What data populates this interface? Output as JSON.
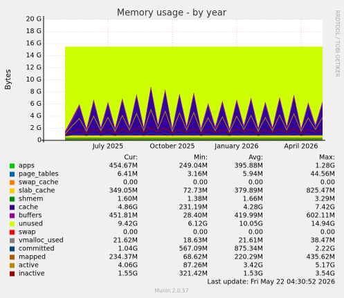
{
  "chart_data": {
    "type": "area",
    "title": "Memory usage - by year",
    "y_label": "Bytes",
    "side_note": "RRDTOOL / TOBI OETIKER",
    "categories": [
      null,
      null,
      null,
      null,
      null,
      null,
      null,
      null,
      null,
      "July 2025",
      null,
      null,
      null,
      null,
      null,
      null,
      null,
      null,
      "October 2025",
      null,
      null,
      null,
      null,
      null,
      null,
      null,
      null,
      "January 2026",
      null,
      null,
      null,
      null,
      null,
      null,
      null,
      null,
      "April 2026",
      null,
      null,
      null
    ],
    "ylim": [
      0,
      20
    ],
    "yticks": [
      0,
      {
        "value": 2,
        "label": "2 G"
      },
      {
        "value": 4,
        "label": "4 G"
      },
      {
        "value": 6,
        "label": "6 G"
      },
      {
        "value": 8,
        "label": "8 G"
      },
      {
        "value": 10,
        "label": "10 G"
      },
      {
        "value": 12,
        "label": "12 G"
      },
      {
        "value": 14,
        "label": "14 G"
      },
      {
        "value": 16,
        "label": "16 G"
      },
      {
        "value": 18,
        "label": "18 G"
      },
      {
        "value": 20,
        "label": "20 G"
      }
    ],
    "grid": true,
    "stat_headers": [
      "Cur:",
      "Min:",
      "Avg:",
      "Max:"
    ],
    "series": [
      {
        "name": "apps",
        "color": "#00cc00",
        "style": "area",
        "stats": [
          "454.67M",
          "249.04M",
          "395.88M",
          "1.28G"
        ],
        "values": [
          null,
          null,
          null,
          0.45,
          0.45,
          0.45,
          0.45,
          0.45,
          0.45,
          0.45,
          0.45,
          0.45,
          0.45,
          0.45,
          0.45,
          0.45,
          0.45,
          0.45,
          0.45,
          0.45,
          0.45,
          0.45,
          0.45,
          0.45,
          0.45,
          0.45,
          0.45,
          0.45,
          0.45,
          0.45,
          0.45,
          0.45,
          0.45,
          0.45,
          0.45,
          0.45,
          0.45,
          0.45,
          0.45,
          0.45
        ]
      },
      {
        "name": "page_tables",
        "color": "#0066b3",
        "style": "area",
        "stats": [
          "6.41M",
          "3.16M",
          "5.94M",
          "44.56M"
        ],
        "values": [
          null,
          null,
          null,
          0.006,
          0.006,
          0.006,
          0.006,
          0.006,
          0.006,
          0.006,
          0.006,
          0.006,
          0.006,
          0.006,
          0.006,
          0.006,
          0.006,
          0.006,
          0.006,
          0.006,
          0.006,
          0.006,
          0.006,
          0.006,
          0.006,
          0.006,
          0.006,
          0.006,
          0.006,
          0.006,
          0.006,
          0.006,
          0.006,
          0.006,
          0.006,
          0.006,
          0.006,
          0.006,
          0.006,
          0.006
        ]
      },
      {
        "name": "swap_cache",
        "color": "#ff8000",
        "style": "area",
        "stats": [
          "0.00",
          "0.00",
          "0.00",
          "0.00"
        ],
        "values": [
          null,
          null,
          null,
          0,
          0,
          0,
          0,
          0,
          0,
          0,
          0,
          0,
          0,
          0,
          0,
          0,
          0,
          0,
          0,
          0,
          0,
          0,
          0,
          0,
          0,
          0,
          0,
          0,
          0,
          0,
          0,
          0,
          0,
          0,
          0,
          0,
          0,
          0,
          0,
          0
        ]
      },
      {
        "name": "slab_cache",
        "color": "#ffcc00",
        "style": "area",
        "stats": [
          "349.05M",
          "72.73M",
          "379.89M",
          "825.47M"
        ],
        "values": [
          null,
          null,
          null,
          0.35,
          0.35,
          0.35,
          0.35,
          0.35,
          0.35,
          0.35,
          0.35,
          0.35,
          0.35,
          0.35,
          0.35,
          0.35,
          0.35,
          0.35,
          0.35,
          0.35,
          0.35,
          0.35,
          0.35,
          0.35,
          0.35,
          0.35,
          0.35,
          0.35,
          0.35,
          0.35,
          0.35,
          0.35,
          0.35,
          0.35,
          0.35,
          0.35,
          0.35,
          0.35,
          0.35,
          0.35
        ]
      },
      {
        "name": "shmem",
        "color": "#008f00",
        "style": "area",
        "stats": [
          "1.60M",
          "1.38M",
          "1.66M",
          "3.29M"
        ],
        "values": [
          null,
          null,
          null,
          0.002,
          0.002,
          0.002,
          0.002,
          0.002,
          0.002,
          0.002,
          0.002,
          0.002,
          0.002,
          0.002,
          0.002,
          0.002,
          0.002,
          0.002,
          0.002,
          0.002,
          0.002,
          0.002,
          0.002,
          0.002,
          0.002,
          0.002,
          0.002,
          0.002,
          0.002,
          0.002,
          0.002,
          0.002,
          0.002,
          0.002,
          0.002,
          0.002,
          0.002,
          0.002,
          0.002,
          0.002
        ]
      },
      {
        "name": "cache",
        "color": "#330099",
        "style": "area",
        "stats": [
          "4.86G",
          "231.19M",
          "4.28G",
          "7.42G"
        ],
        "values": [
          null,
          null,
          null,
          0.3,
          2.5,
          4.8,
          0.8,
          5.6,
          1.0,
          5.2,
          0.9,
          5.8,
          1.2,
          6.5,
          1.0,
          7.8,
          1.5,
          7.3,
          0.9,
          6.6,
          1.2,
          6.8,
          0.8,
          5.0,
          1.1,
          5.4,
          0.7,
          5.6,
          1.3,
          5.9,
          0.9,
          5.2,
          1.0,
          6.0,
          1.2,
          6.4,
          0.8,
          5.1,
          1.4,
          5.3
        ]
      },
      {
        "name": "buffers",
        "color": "#990099",
        "style": "area",
        "stats": [
          "451.81M",
          "28.40M",
          "419.99M",
          "602.11M"
        ],
        "values": [
          null,
          null,
          null,
          0.4,
          0.4,
          0.4,
          0.4,
          0.4,
          0.4,
          0.4,
          0.4,
          0.4,
          0.4,
          0.4,
          0.4,
          0.4,
          0.4,
          0.4,
          0.4,
          0.4,
          0.4,
          0.4,
          0.4,
          0.4,
          0.4,
          0.4,
          0.4,
          0.4,
          0.4,
          0.4,
          0.4,
          0.4,
          0.4,
          0.4,
          0.4,
          0.4,
          0.4,
          0.4,
          0.4,
          0.4
        ]
      },
      {
        "name": "unused",
        "color": "#ccff00",
        "style": "area",
        "stats": [
          "9.42G",
          "6.12G",
          "10.05G",
          "14.94G"
        ],
        "values": [
          null,
          null,
          null,
          13.99,
          11.79,
          9.49,
          13.49,
          8.69,
          13.29,
          9.09,
          13.39,
          8.49,
          13.09,
          7.79,
          13.29,
          6.49,
          12.79,
          6.99,
          13.39,
          7.69,
          13.09,
          7.49,
          13.49,
          9.29,
          13.19,
          8.89,
          13.59,
          8.69,
          12.99,
          8.39,
          13.39,
          9.09,
          13.29,
          8.29,
          13.09,
          7.89,
          13.49,
          9.19,
          12.89,
          8.99
        ]
      },
      {
        "name": "swap",
        "color": "#ff0000",
        "style": "line",
        "stats": [
          "0.00",
          "0.00",
          "0.00",
          "0.00"
        ],
        "values": [
          null,
          null,
          null,
          0,
          0,
          0,
          0,
          0,
          0,
          0,
          0,
          0,
          0,
          0,
          0,
          0,
          0,
          0,
          0,
          0,
          0,
          0,
          0,
          0,
          0,
          0,
          0,
          0,
          0,
          0,
          0,
          0,
          0,
          0,
          0,
          0,
          0,
          0,
          0,
          0
        ]
      },
      {
        "name": "vmalloc_used",
        "color": "#808080",
        "style": "line",
        "stats": [
          "21.62M",
          "18.63M",
          "21.61M",
          "38.47M"
        ],
        "values": [
          null,
          null,
          null,
          0.02,
          0.02,
          0.02,
          0.02,
          0.02,
          0.02,
          0.02,
          0.02,
          0.02,
          0.02,
          0.02,
          0.02,
          0.02,
          0.02,
          0.02,
          0.02,
          0.02,
          0.02,
          0.02,
          0.02,
          0.02,
          0.02,
          0.02,
          0.02,
          0.02,
          0.02,
          0.02,
          0.02,
          0.02,
          0.02,
          0.02,
          0.02,
          0.02,
          0.02,
          0.02,
          0.02,
          0.02
        ]
      },
      {
        "name": "committed",
        "color": "#00487d",
        "style": "line",
        "stats": [
          "1.04G",
          "567.09M",
          "875.34M",
          "2.22G"
        ],
        "values": [
          null,
          null,
          null,
          0.7,
          0.9,
          1.0,
          0.8,
          1.1,
          0.8,
          1.0,
          0.8,
          1.1,
          0.9,
          1.2,
          0.8,
          1.3,
          0.9,
          1.2,
          0.8,
          1.1,
          0.9,
          1.1,
          0.8,
          1.0,
          0.9,
          1.0,
          0.8,
          1.1,
          0.9,
          1.1,
          0.8,
          1.0,
          0.9,
          1.1,
          0.9,
          1.2,
          0.8,
          1.0,
          0.9,
          1.0
        ]
      },
      {
        "name": "mapped",
        "color": "#b35a00",
        "style": "line",
        "stats": [
          "234.37M",
          "68.62M",
          "220.29M",
          "435.62M"
        ],
        "values": [
          null,
          null,
          null,
          0.2,
          0.22,
          0.25,
          0.2,
          0.24,
          0.21,
          0.23,
          0.2,
          0.24,
          0.21,
          0.26,
          0.2,
          0.3,
          0.21,
          0.28,
          0.2,
          0.25,
          0.21,
          0.26,
          0.2,
          0.23,
          0.21,
          0.24,
          0.2,
          0.25,
          0.22,
          0.25,
          0.2,
          0.23,
          0.21,
          0.24,
          0.21,
          0.25,
          0.2,
          0.23,
          0.22,
          0.23
        ]
      },
      {
        "name": "active",
        "color": "#b38f00",
        "style": "line",
        "stats": [
          "4.06G",
          "87.26M",
          "3.42G",
          "5.17G"
        ],
        "values": [
          null,
          null,
          null,
          1.0,
          2.4,
          3.6,
          1.5,
          4.0,
          1.6,
          3.8,
          1.5,
          4.1,
          1.7,
          4.4,
          1.6,
          5.1,
          1.9,
          4.8,
          1.5,
          4.5,
          1.7,
          4.6,
          1.5,
          3.7,
          1.6,
          3.9,
          1.4,
          4.0,
          1.8,
          4.1,
          1.5,
          3.8,
          1.6,
          4.2,
          1.7,
          4.4,
          1.5,
          3.7,
          1.8,
          3.8
        ]
      },
      {
        "name": "inactive",
        "color": "#990000",
        "style": "line",
        "stats": [
          "1.55G",
          "321.42M",
          "1.53G",
          "3.54G"
        ],
        "values": [
          null,
          null,
          null,
          0.9,
          1.4,
          1.8,
          1.2,
          1.9,
          1.3,
          1.8,
          1.2,
          1.9,
          1.3,
          2.0,
          1.3,
          2.1,
          1.4,
          2.0,
          1.2,
          1.9,
          1.3,
          1.9,
          1.2,
          1.8,
          1.3,
          1.8,
          1.2,
          1.9,
          1.4,
          1.9,
          1.2,
          1.8,
          1.3,
          1.9,
          1.3,
          2.0,
          1.2,
          1.8,
          1.4,
          1.8
        ]
      }
    ],
    "last_update": "Last update: Fri May 22 04:30:52 2026",
    "footer": "Munin 2.0.57"
  }
}
